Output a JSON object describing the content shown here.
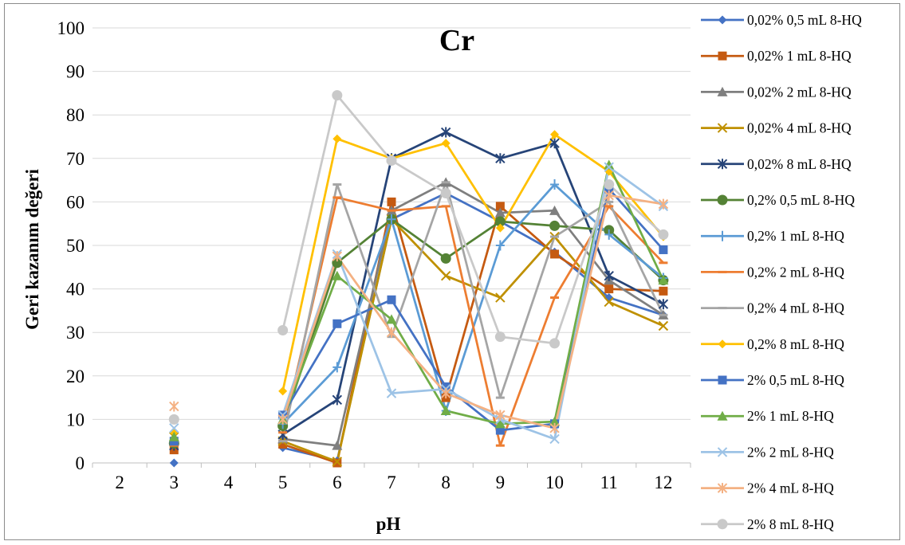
{
  "chart_data": {
    "type": "line",
    "title": "Cr",
    "xlabel": "pH",
    "ylabel": "Geri kazanım değeri",
    "categories": [
      "2",
      "3",
      "4",
      "5",
      "6",
      "7",
      "8",
      "9",
      "10",
      "11",
      "12"
    ],
    "ylim": [
      0,
      100
    ],
    "yticks": [
      0,
      10,
      20,
      30,
      40,
      50,
      60,
      70,
      80,
      90,
      100
    ],
    "grid": "horizontal",
    "legend": "right",
    "series": [
      {
        "name": "0,02% 0,5 mL 8-HQ",
        "color": "#4472c4",
        "marker": "diamond",
        "values": [
          null,
          0,
          null,
          3.5,
          0.5,
          56,
          62,
          55.5,
          48.5,
          38,
          34
        ]
      },
      {
        "name": "0,02% 1 mL 8-HQ",
        "color": "#c55a11",
        "marker": "square",
        "values": [
          null,
          3,
          null,
          4.3,
          0,
          60,
          15,
          59,
          48,
          40,
          39.5
        ]
      },
      {
        "name": "0,02% 2 mL 8-HQ",
        "color": "#7f7f7f",
        "marker": "triangle",
        "values": [
          null,
          5,
          null,
          5.5,
          4,
          58,
          64.5,
          57.5,
          58,
          42,
          34
        ]
      },
      {
        "name": "0,02% 4 mL 8-HQ",
        "color": "#bf9000",
        "marker": "x",
        "values": [
          null,
          6,
          null,
          5,
          0.3,
          56,
          43,
          38,
          52,
          37,
          31.5
        ]
      },
      {
        "name": "0,02% 8  mL 8-HQ",
        "color": "#264478",
        "marker": "star",
        "values": [
          null,
          4,
          null,
          6.5,
          14.5,
          70,
          76,
          70,
          73.5,
          43,
          36.5
        ]
      },
      {
        "name": "0,2% 0,5 mL 8-HQ",
        "color": "#548235",
        "marker": "circle",
        "values": [
          null,
          4.5,
          null,
          8.5,
          46,
          56,
          47,
          55.5,
          54.5,
          53.5,
          42
        ]
      },
      {
        "name": "0,2% 1 mL 8-HQ",
        "color": "#5b9bd5",
        "marker": "plus",
        "values": [
          null,
          5,
          null,
          9,
          22,
          56,
          12,
          50,
          64,
          52.5,
          42.5
        ]
      },
      {
        "name": "0,2% 2 mL 8-HQ",
        "color": "#ed7d31",
        "marker": "dash",
        "values": [
          null,
          4,
          null,
          7,
          61,
          58,
          59,
          4,
          38,
          59,
          46
        ]
      },
      {
        "name": "0,2% 4 mL 8-HQ",
        "color": "#a5a5a5",
        "marker": "dash",
        "values": [
          null,
          5,
          null,
          5,
          64,
          29,
          64.5,
          15,
          52,
          60,
          34
        ]
      },
      {
        "name": "0,2% 8  mL 8-HQ",
        "color": "#ffc000",
        "marker": "diamond",
        "values": [
          null,
          7,
          null,
          16.5,
          74.5,
          70,
          73.5,
          54,
          75.5,
          67,
          52
        ]
      },
      {
        "name": "2% 0,5 mL 8-HQ",
        "color": "#4472c4",
        "marker": "square",
        "values": [
          null,
          5,
          null,
          11,
          32,
          37.5,
          17.5,
          7.5,
          9,
          63,
          49
        ]
      },
      {
        "name": "2% 1 mL 8-HQ",
        "color": "#70ad47",
        "marker": "triangle",
        "values": [
          null,
          6,
          null,
          10,
          43,
          33,
          12,
          9,
          9.5,
          68.5,
          42
        ]
      },
      {
        "name": "2% 2 mL 8-HQ",
        "color": "#9dc3e6",
        "marker": "x",
        "values": [
          null,
          8,
          null,
          11,
          48,
          16,
          17,
          10,
          5.5,
          68,
          59
        ]
      },
      {
        "name": "2% 4 mL 8-HQ",
        "color": "#f4b183",
        "marker": "star",
        "values": [
          null,
          13,
          null,
          10,
          47.5,
          30,
          16,
          11,
          8,
          61.5,
          59.5
        ]
      },
      {
        "name": "2% 8  mL 8-HQ",
        "color": "#c9c9c9",
        "marker": "circle",
        "values": [
          null,
          10,
          null,
          30.5,
          84.5,
          69.5,
          62,
          29,
          27.5,
          64,
          52.5
        ]
      }
    ]
  }
}
